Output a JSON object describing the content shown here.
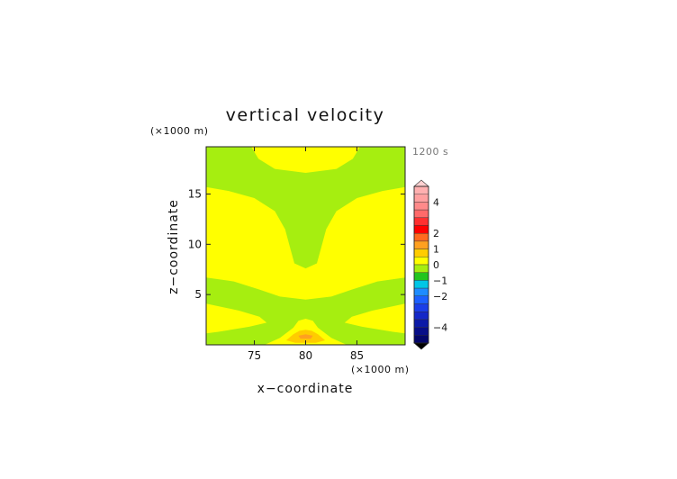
{
  "chart_data": {
    "type": "heatmap",
    "title": "vertical velocity",
    "xlabel": "x−coordinate",
    "ylabel": "z−coordinate",
    "x_unit": "(×1000 m)",
    "y_unit": "(×1000 m)",
    "time_label": "1200 s",
    "xlim": [
      70.3,
      89.7
    ],
    "ylim": [
      0,
      19.7
    ],
    "x_ticks": [
      "75",
      "80",
      "85"
    ],
    "y_ticks": [
      "5",
      "10",
      "15"
    ],
    "x_tick_values": [
      75,
      80,
      85
    ],
    "y_tick_values": [
      5,
      10,
      15
    ],
    "grid": false,
    "colorbar": {
      "tick_labels": [
        "4",
        "2",
        "1",
        "0",
        "−1",
        "−2",
        "−4"
      ],
      "tick_values": [
        4,
        2,
        1,
        0,
        -1,
        -2,
        -4
      ],
      "max": 5,
      "min": -5,
      "bands": [
        {
          "from": 4.5,
          "to": 5.0,
          "color": "#ffb0b0"
        },
        {
          "from": 4.0,
          "to": 4.5,
          "color": "#ffa0a0"
        },
        {
          "from": 3.5,
          "to": 4.0,
          "color": "#ff8a8a"
        },
        {
          "from": 3.0,
          "to": 3.5,
          "color": "#ff6a6a"
        },
        {
          "from": 2.5,
          "to": 3.0,
          "color": "#ff3030"
        },
        {
          "from": 2.0,
          "to": 2.5,
          "color": "#ff0000"
        },
        {
          "from": 1.5,
          "to": 2.0,
          "color": "#ff6a1e"
        },
        {
          "from": 1.0,
          "to": 1.5,
          "color": "#ffa020"
        },
        {
          "from": 0.5,
          "to": 1.0,
          "color": "#ffcc00"
        },
        {
          "from": 0.0,
          "to": 0.5,
          "color": "#ffff00"
        },
        {
          "from": -0.5,
          "to": 0.0,
          "color": "#a6ee10"
        },
        {
          "from": -1.0,
          "to": -0.5,
          "color": "#22c51e"
        },
        {
          "from": -1.5,
          "to": -1.0,
          "color": "#00c6e6"
        },
        {
          "from": -2.0,
          "to": -1.5,
          "color": "#1e8cff"
        },
        {
          "from": -2.5,
          "to": -2.0,
          "color": "#1c60ff"
        },
        {
          "from": -3.0,
          "to": -2.5,
          "color": "#1a3ee8"
        },
        {
          "from": -3.5,
          "to": -3.0,
          "color": "#1428c8"
        },
        {
          "from": -4.0,
          "to": -3.5,
          "color": "#0c1aa8"
        },
        {
          "from": -4.5,
          "to": -4.0,
          "color": "#080e88"
        },
        {
          "from": -5.0,
          "to": -4.5,
          "color": "#04066a"
        }
      ],
      "over_color": "#ffd0d0",
      "under_color": "#000000"
    },
    "regions": [
      {
        "level": "-0.5 to 0",
        "color": "#a6ee10",
        "polygon": [
          [
            70.3,
            0
          ],
          [
            89.7,
            0
          ],
          [
            89.7,
            19.7
          ],
          [
            70.3,
            19.7
          ]
        ]
      },
      {
        "level": "0 to 0.5",
        "color": "#ffff00",
        "polygon": [
          [
            74.7,
            19.7
          ],
          [
            75.4,
            18.5
          ],
          [
            77.0,
            17.5
          ],
          [
            80.0,
            17.1
          ],
          [
            83.0,
            17.5
          ],
          [
            84.6,
            18.5
          ],
          [
            85.3,
            19.7
          ]
        ]
      },
      {
        "level": "0 to 0.5",
        "color": "#ffff00",
        "polygon": [
          [
            70.3,
            15.7
          ],
          [
            72.5,
            15.3
          ],
          [
            75.0,
            14.6
          ],
          [
            77.0,
            13.3
          ],
          [
            78.0,
            11.5
          ],
          [
            78.5,
            9.6
          ],
          [
            78.9,
            8.1
          ],
          [
            80.0,
            7.6
          ],
          [
            81.1,
            8.1
          ],
          [
            81.5,
            9.6
          ],
          [
            82.0,
            11.5
          ],
          [
            83.0,
            13.3
          ],
          [
            85.0,
            14.6
          ],
          [
            87.5,
            15.3
          ],
          [
            89.7,
            15.7
          ],
          [
            89.7,
            6.7
          ],
          [
            87.0,
            6.3
          ],
          [
            84.5,
            5.5
          ],
          [
            82.5,
            4.8
          ],
          [
            80.0,
            4.5
          ],
          [
            77.5,
            4.8
          ],
          [
            75.5,
            5.5
          ],
          [
            73.0,
            6.3
          ],
          [
            70.3,
            6.7
          ]
        ]
      },
      {
        "level": "0 to 0.5",
        "color": "#ffff00",
        "polygon": [
          [
            70.3,
            4.1
          ],
          [
            73.5,
            3.4
          ],
          [
            75.5,
            2.8
          ],
          [
            76.2,
            2.2
          ],
          [
            74.5,
            1.8
          ],
          [
            71.5,
            1.3
          ],
          [
            70.3,
            1.15
          ]
        ]
      },
      {
        "level": "0 to 0.5",
        "color": "#ffff00",
        "polygon": [
          [
            89.7,
            4.1
          ],
          [
            86.5,
            3.4
          ],
          [
            84.5,
            2.8
          ],
          [
            83.8,
            2.2
          ],
          [
            85.5,
            1.8
          ],
          [
            88.5,
            1.3
          ],
          [
            89.7,
            1.15
          ]
        ]
      },
      {
        "level": "0 to 0.5",
        "color": "#ffff00",
        "polygon": [
          [
            76.0,
            0
          ],
          [
            77.5,
            0.7
          ],
          [
            78.8,
            1.7
          ],
          [
            79.3,
            2.4
          ],
          [
            80.0,
            2.6
          ],
          [
            80.7,
            2.4
          ],
          [
            81.2,
            1.7
          ],
          [
            82.5,
            0.7
          ],
          [
            84.0,
            0
          ]
        ]
      },
      {
        "level": "0.5 to 1",
        "color": "#ffcc00",
        "polygon": [
          [
            78.1,
            0.45
          ],
          [
            78.8,
            1.05
          ],
          [
            79.4,
            1.4
          ],
          [
            80.0,
            1.5
          ],
          [
            80.6,
            1.4
          ],
          [
            81.2,
            1.05
          ],
          [
            81.9,
            0.45
          ],
          [
            81.0,
            0.2
          ],
          [
            79.0,
            0.2
          ]
        ]
      },
      {
        "level": "1 to 1.5",
        "color": "#ffa020",
        "polygon": [
          [
            79.3,
            0.9
          ],
          [
            80.0,
            1.05
          ],
          [
            80.7,
            0.9
          ],
          [
            80.5,
            0.6
          ],
          [
            79.5,
            0.6
          ]
        ]
      }
    ]
  }
}
